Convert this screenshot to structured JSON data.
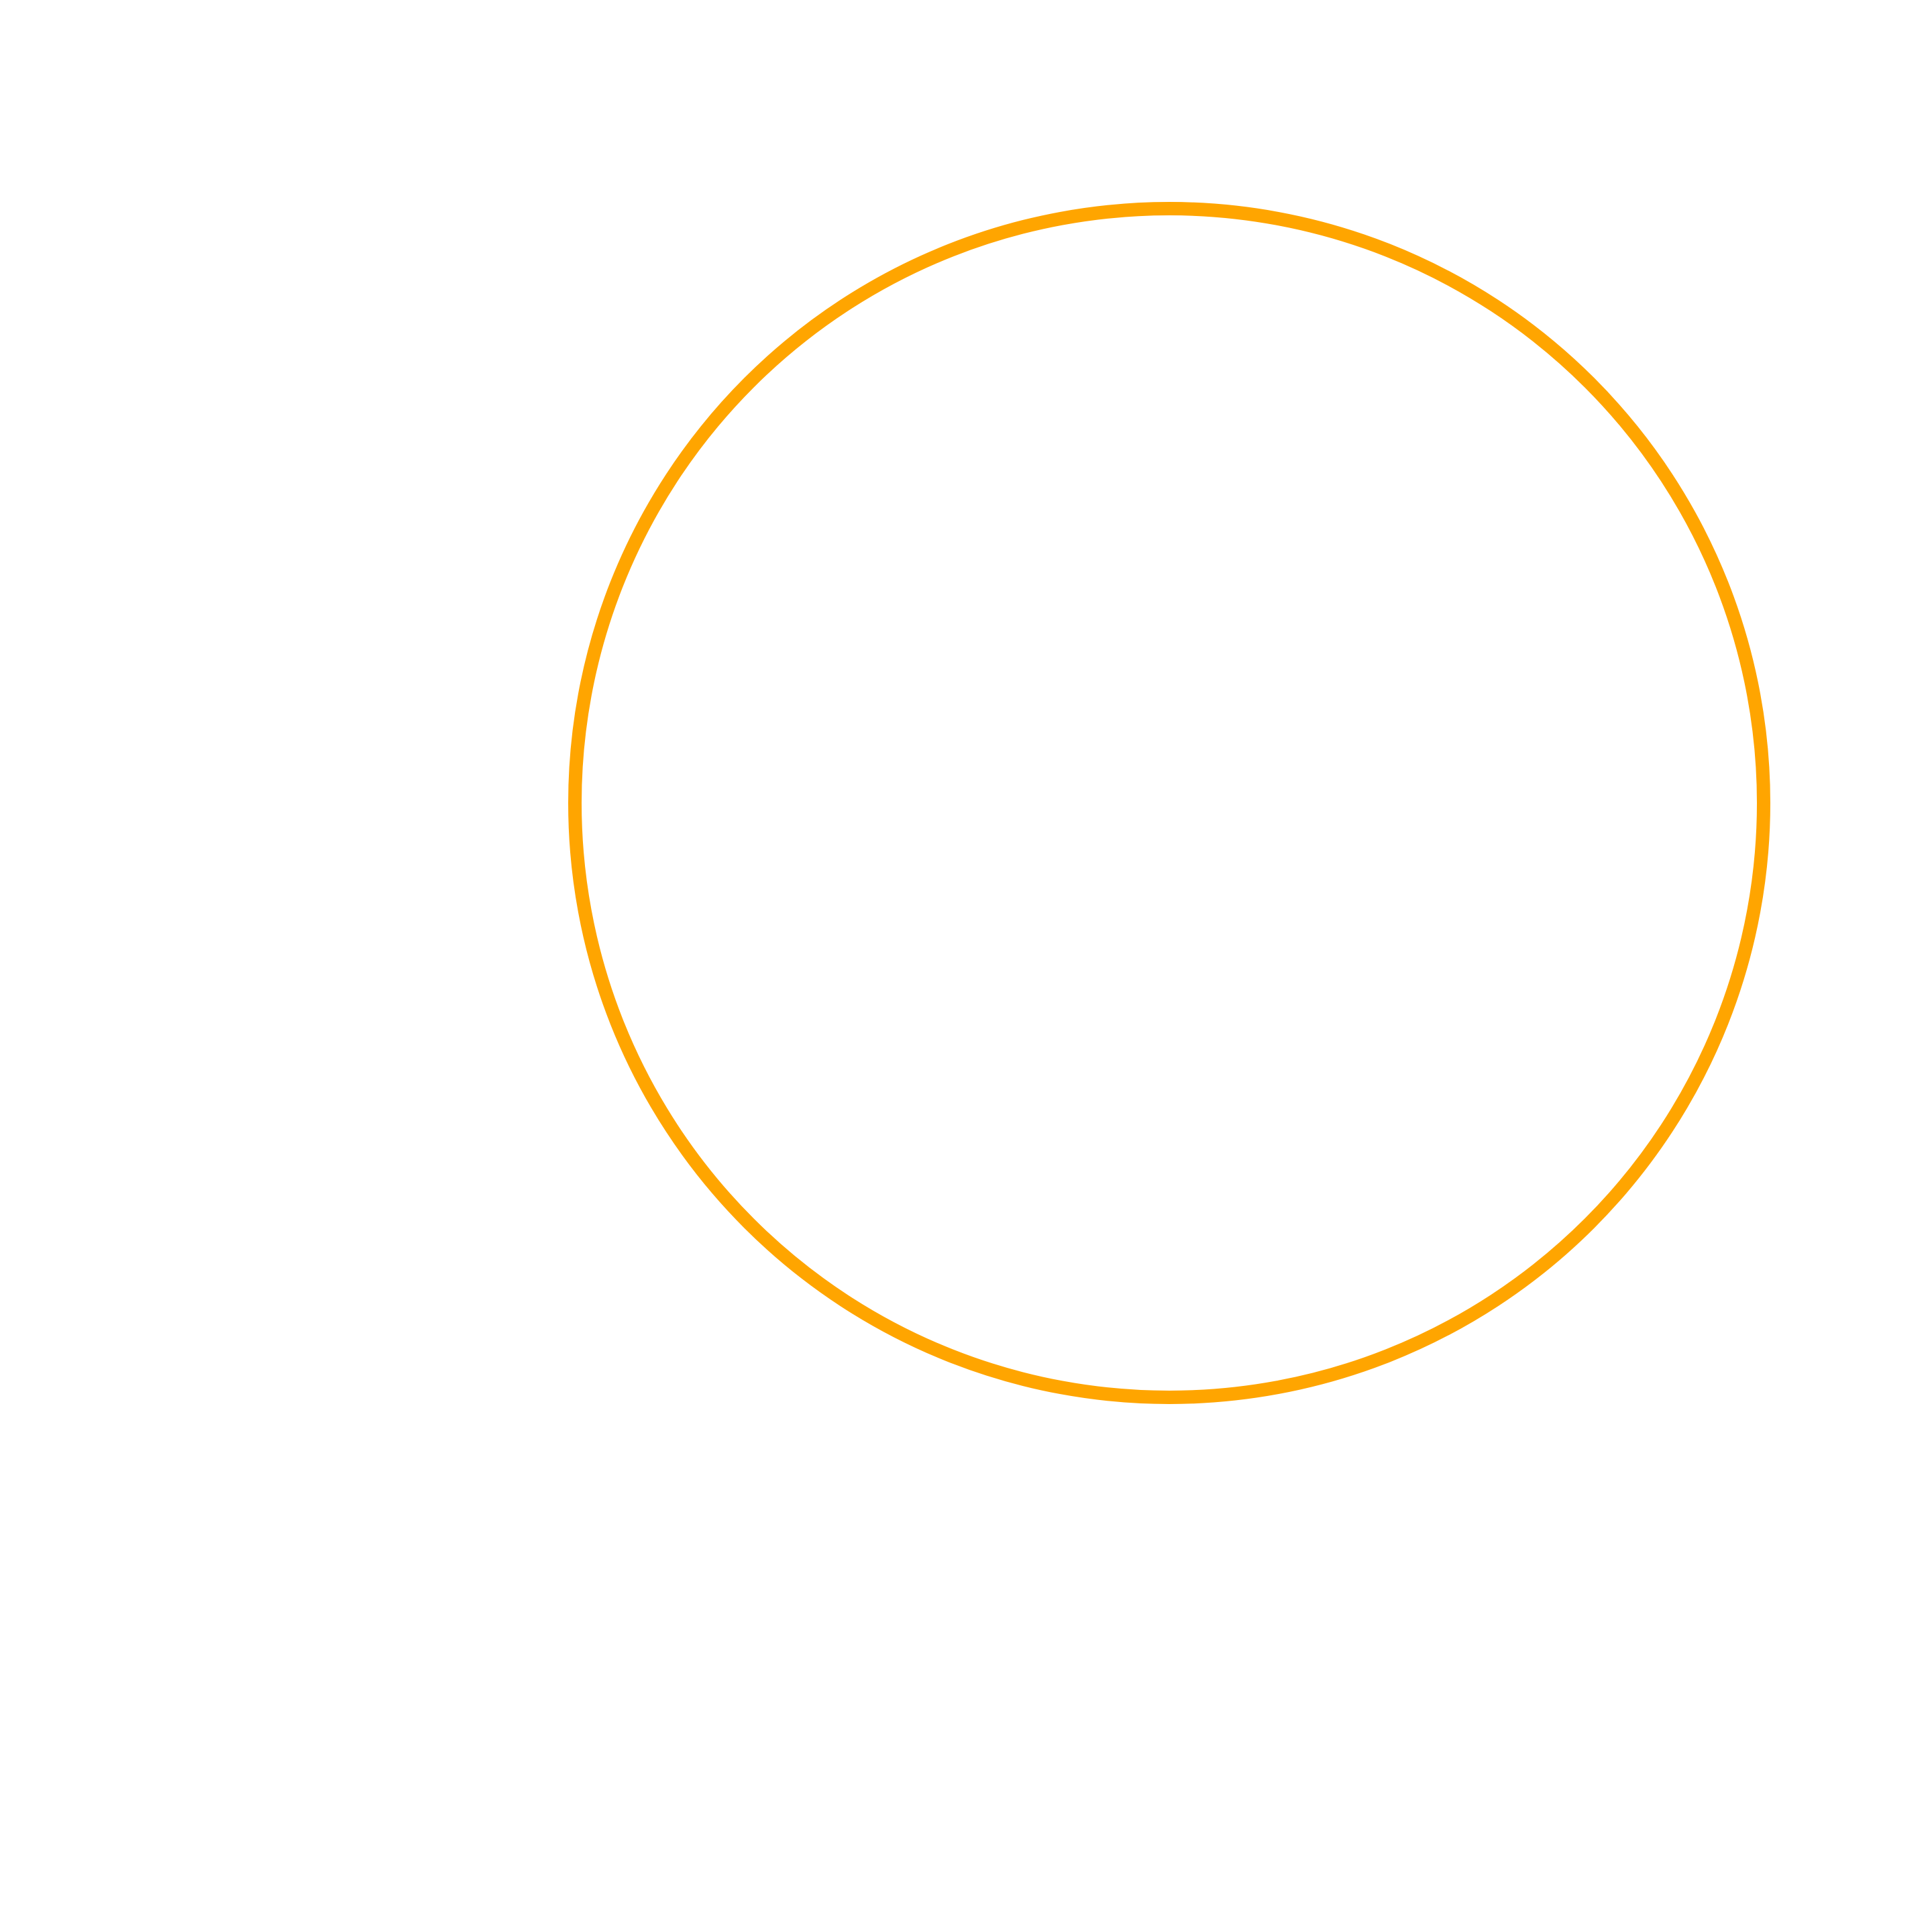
{
  "shapes": {
    "ring": {
      "kind": "circle-outline",
      "stroke_color": "#FFA500",
      "fill_color": "none"
    }
  },
  "background_color": "#FFFFFF"
}
